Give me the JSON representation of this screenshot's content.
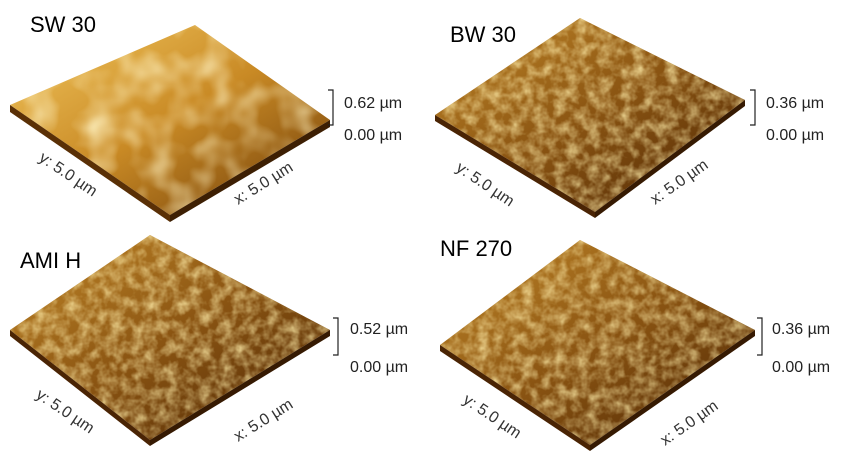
{
  "panels": [
    {
      "title": "SW 30",
      "z_max": "0.62 µm",
      "z_min": "0.00 µm",
      "y_axis": "y: 5.0 µm",
      "x_axis": "x: 5.0 µm"
    },
    {
      "title": "BW 30",
      "z_max": "0.36 µm",
      "z_min": "0.00 µm",
      "y_axis": "y: 5.0 µm",
      "x_axis": "x: 5.0 µm"
    },
    {
      "title": "AMI H",
      "z_max": "0.52 µm",
      "z_min": "0.00 µm",
      "y_axis": "y: 5.0 µm",
      "x_axis": "x: 5.0 µm"
    },
    {
      "title": "NF 270",
      "z_max": "0.36 µm",
      "z_min": "0.00 µm",
      "y_axis": "y: 5.0 µm",
      "x_axis": "x: 5.0 µm"
    }
  ]
}
